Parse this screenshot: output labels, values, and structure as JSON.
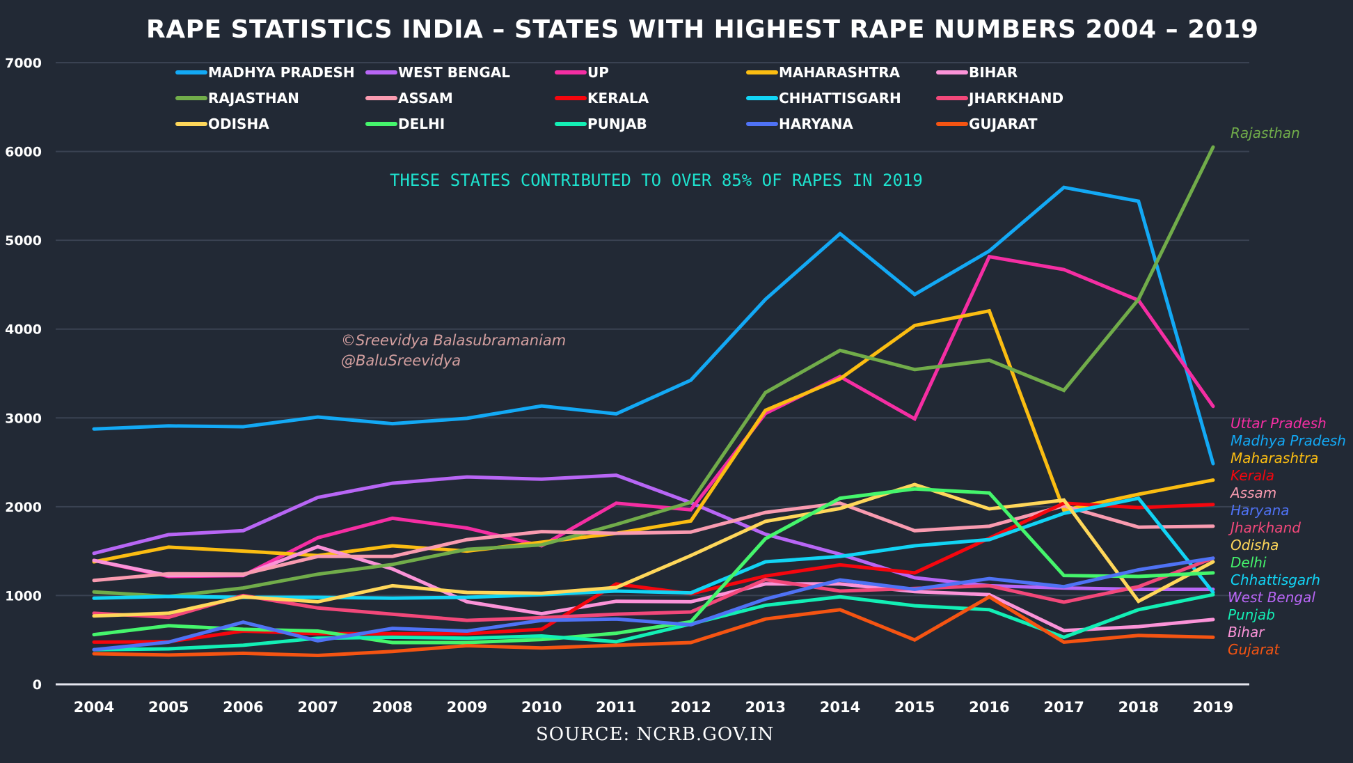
{
  "chart_data": {
    "type": "line",
    "title": "RAPE STATISTICS INDIA – STATES WITH HIGHEST RAPE NUMBERS 2004 – 2019",
    "subtitle": "THESE STATES CONTRIBUTED TO OVER 85% OF RAPES IN 2019",
    "credit": [
      "©Sreevidya Balasubramaniam",
      "@BaluSreevidya"
    ],
    "source": "SOURCE: NCRB.GOV.IN",
    "xlabel": "",
    "ylabel": "",
    "x": [
      "2004",
      "2005",
      "2006",
      "2007",
      "2008",
      "2009",
      "2010",
      "2011",
      "2012",
      "2013",
      "2014",
      "2015",
      "2016",
      "2017",
      "2018",
      "2019"
    ],
    "ylim": [
      0,
      7000
    ],
    "yticks": [
      "0",
      "1000",
      "2000",
      "3000",
      "4000",
      "5000",
      "6000",
      "7000"
    ],
    "grid": true,
    "legend_position": "top",
    "series": [
      {
        "name": "MADHYA PRADESH",
        "end_label": "Madhya Pradesh",
        "color": "#13a9f5",
        "values": [
          2875,
          2910,
          2900,
          3010,
          2935,
          2995,
          3135,
          3045,
          3425,
          4335,
          5075,
          4390,
          4880,
          5595,
          5440,
          2485
        ]
      },
      {
        "name": "WEST BENGAL",
        "end_label": "West Bengal",
        "color": "#b866f5",
        "values": [
          1475,
          1685,
          1730,
          2105,
          2265,
          2335,
          2310,
          2355,
          2045,
          1690,
          1465,
          1200,
          1110,
          1085,
          1070,
          1070
        ]
      },
      {
        "name": "UP",
        "end_label": "Uttar Pradesh",
        "color": "#f52ea3",
        "values": [
          1395,
          1215,
          1225,
          1650,
          1870,
          1760,
          1560,
          2040,
          1965,
          3050,
          3465,
          2990,
          4815,
          4670,
          4325,
          3130
        ]
      },
      {
        "name": "MAHARASHTRA",
        "end_label": "Maharashtra",
        "color": "#fbbd12",
        "values": [
          1380,
          1545,
          1500,
          1450,
          1560,
          1500,
          1600,
          1700,
          1840,
          3085,
          3440,
          4040,
          4205,
          1960,
          2140,
          2300
        ]
      },
      {
        "name": "BIHAR",
        "end_label": "Bihar",
        "color": "#fb93d8",
        "values": [
          1395,
          1225,
          1230,
          1550,
          1300,
          930,
          795,
          935,
          930,
          1130,
          1130,
          1045,
          1010,
          605,
          650,
          730
        ]
      },
      {
        "name": "RAJASTHAN",
        "end_label": "Rajasthan",
        "color": "#71ac4a",
        "values": [
          1040,
          990,
          1085,
          1240,
          1350,
          1520,
          1570,
          1800,
          2050,
          3285,
          3760,
          3545,
          3650,
          3310,
          4335,
          6050
        ]
      },
      {
        "name": "ASSAM",
        "end_label": "Assam",
        "color": "#f99bb0",
        "values": [
          1170,
          1245,
          1240,
          1440,
          1440,
          1630,
          1720,
          1700,
          1715,
          1935,
          2040,
          1730,
          1780,
          2010,
          1770,
          1780
        ]
      },
      {
        "name": "KERALA",
        "end_label": "Kerala",
        "color": "#f5060e",
        "values": [
          475,
          480,
          600,
          570,
          570,
          570,
          620,
          1130,
          1020,
          1220,
          1345,
          1255,
          1645,
          2040,
          1990,
          2025
        ]
      },
      {
        "name": "CHHATTISGARH",
        "end_label": "Chhattisgarh",
        "color": "#12d4f5",
        "values": [
          970,
          990,
          980,
          980,
          970,
          980,
          1010,
          1050,
          1030,
          1380,
          1440,
          1560,
          1630,
          1925,
          2095,
          1035
        ]
      },
      {
        "name": "JHARKHAND",
        "end_label": "Jharkhand",
        "color": "#f2487a",
        "values": [
          800,
          755,
          1000,
          860,
          790,
          720,
          750,
          790,
          815,
          1180,
          1050,
          1080,
          1110,
          925,
          1100,
          1420
        ]
      },
      {
        "name": "ODISHA",
        "end_label": "Odisha",
        "color": "#ffd75a",
        "values": [
          770,
          800,
          985,
          930,
          1110,
          1035,
          1025,
          1090,
          1450,
          1835,
          1980,
          2250,
          1975,
          2075,
          935,
          1380
        ]
      },
      {
        "name": "DELHI",
        "end_label": "Delhi",
        "color": "#45f56c",
        "values": [
          560,
          660,
          620,
          600,
          470,
          470,
          505,
          575,
          705,
          1640,
          2095,
          2200,
          2155,
          1225,
          1215,
          1255
        ]
      },
      {
        "name": "PUNJAB",
        "end_label": "Punjab",
        "color": "#13efb5",
        "values": [
          390,
          400,
          440,
          520,
          530,
          520,
          545,
          480,
          680,
          890,
          985,
          885,
          840,
          530,
          840,
          1010
        ]
      },
      {
        "name": "HARYANA",
        "end_label": "Haryana",
        "color": "#4f72f5",
        "values": [
          390,
          475,
          700,
          490,
          630,
          600,
          720,
          735,
          670,
          960,
          1175,
          1070,
          1190,
          1100,
          1290,
          1420
        ]
      },
      {
        "name": "GUJARAT",
        "end_label": "Gujarat",
        "color": "#f55412",
        "values": [
          345,
          330,
          350,
          325,
          370,
          435,
          410,
          440,
          470,
          735,
          840,
          500,
          985,
          475,
          550,
          530
        ]
      }
    ],
    "end_label_order": [
      "Uttar Pradesh",
      "Madhya Pradesh",
      "Maharashtra",
      "Kerala",
      "Assam",
      "Haryana",
      "Jharkhand",
      "Odisha",
      "Delhi",
      "Chhattisgarh",
      "West Bengal",
      "Punjab",
      "Bihar",
      "Gujarat"
    ],
    "top_label": "Rajasthan"
  }
}
